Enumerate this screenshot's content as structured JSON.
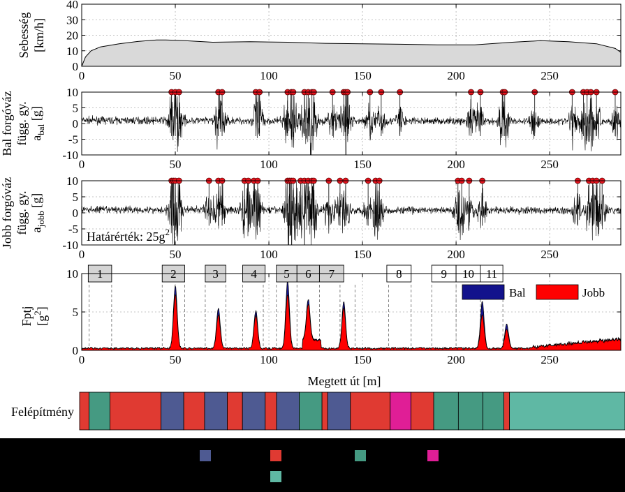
{
  "colors": {
    "speed_fill": "#d9d9d9",
    "signal": "#000000",
    "marker": "#e8141e",
    "bal": "#12128c",
    "jobb": "#ff0000",
    "section_box": "#d4d4d4",
    "structure": {
      "blue": "#4e5a92",
      "red": "#e03a32",
      "teal": "#459a82",
      "magenta": "#e01e96",
      "lightteal": "#5fb8a4"
    }
  },
  "chart_data": [
    {
      "type": "area",
      "ylabel": [
        "Sebesség",
        "[km/h]"
      ],
      "xlim": [
        0,
        288
      ],
      "ylim": [
        0,
        40
      ],
      "xticks": [
        0,
        50,
        100,
        150,
        200,
        250
      ],
      "yticks": [
        0,
        10,
        20,
        30,
        40
      ],
      "grid": true,
      "x": [
        0,
        2,
        5,
        10,
        20,
        30,
        40,
        45,
        55,
        70,
        90,
        110,
        130,
        150,
        170,
        190,
        210,
        230,
        245,
        260,
        275,
        285,
        288
      ],
      "y": [
        0,
        6,
        10,
        12.5,
        14.5,
        16,
        17,
        17,
        16.5,
        15.5,
        15.8,
        15.5,
        14.8,
        14.5,
        14.2,
        13.8,
        13.8,
        15.5,
        16.5,
        15.8,
        14.5,
        11.5,
        9
      ]
    },
    {
      "type": "line",
      "ylabel": [
        "Bal forgóváz",
        "függ. gy.",
        "a",
        "bal",
        " [g]"
      ],
      "xlim": [
        0,
        288
      ],
      "ylim": [
        -10,
        10
      ],
      "xticks": [
        0,
        50,
        100,
        150,
        200,
        250
      ],
      "yticks": [
        -10,
        -5,
        0,
        5,
        10
      ],
      "grid": true,
      "threshold_markers_x": [
        48,
        50,
        52,
        73,
        75,
        93,
        95,
        110,
        112,
        113,
        119,
        121,
        123,
        124,
        134,
        140,
        141,
        142,
        154,
        160,
        170,
        208,
        213,
        225,
        226,
        242,
        262,
        268,
        270,
        272,
        275,
        285
      ]
    },
    {
      "type": "line",
      "ylabel": [
        "Jobb forgóváz",
        "függ. gy.",
        "a",
        "jobb",
        " [g]"
      ],
      "xlim": [
        0,
        288
      ],
      "ylim": [
        -10,
        10
      ],
      "xticks": [
        0,
        50,
        100,
        150,
        200,
        250
      ],
      "yticks": [
        -10,
        -5,
        0,
        5,
        10
      ],
      "grid": true,
      "threshold_markers_x": [
        48,
        49,
        50,
        52,
        68,
        73,
        75,
        87,
        89,
        92,
        94,
        110,
        111,
        112,
        113,
        117,
        119,
        121,
        123,
        124,
        132,
        138,
        141,
        153,
        157,
        159,
        201,
        203,
        207,
        214,
        265,
        271,
        273,
        275,
        278
      ],
      "annotation_prefix": "Határérték: 25g",
      "annotation_sup": "2"
    },
    {
      "type": "area",
      "xlabel": "Megtett út [m]",
      "ylabel": [
        "Fptj",
        "[g",
        "2",
        "]"
      ],
      "xlim": [
        0,
        288
      ],
      "ylim": [
        0,
        10
      ],
      "xticks": [
        0,
        50,
        100,
        150,
        200,
        250
      ],
      "yticks": [
        0,
        5,
        10
      ],
      "grid": true,
      "legend": {
        "placement": "top-right",
        "entries": [
          "Bal",
          "Jobb"
        ]
      },
      "section_labels": [
        "1",
        "2",
        "3",
        "4",
        "5",
        "6",
        "7",
        "8",
        "9",
        "10",
        "11"
      ],
      "section_lines_x": [
        4,
        16,
        43,
        55,
        66,
        77,
        86,
        97,
        104,
        115,
        127,
        138,
        146,
        164,
        176,
        187,
        200,
        213,
        225
      ],
      "series": [
        {
          "name": "Bal",
          "peaks": [
            [
              50,
              8.2
            ],
            [
              73,
              5.2
            ],
            [
              93,
              4.9
            ],
            [
              110,
              8.8
            ],
            [
              121,
              5.3
            ],
            [
              140,
              6.0
            ],
            [
              214,
              6.2
            ],
            [
              227,
              3.2
            ]
          ]
        },
        {
          "name": "Jobb",
          "peaks": [
            [
              50,
              7.6
            ],
            [
              73,
              4.7
            ],
            [
              93,
              4.6
            ],
            [
              110,
              7.6
            ],
            [
              121,
              5.1
            ],
            [
              140,
              5.6
            ],
            [
              214,
              4.8
            ],
            [
              227,
              2.7
            ]
          ]
        }
      ]
    }
  ],
  "structure_strip": {
    "label": "Felépítmény",
    "segments": [
      {
        "from": 0,
        "to": 5,
        "color": "red"
      },
      {
        "from": 5,
        "to": 16,
        "color": "teal"
      },
      {
        "from": 16,
        "to": 43,
        "color": "red"
      },
      {
        "from": 43,
        "to": 55,
        "color": "blue"
      },
      {
        "from": 55,
        "to": 66,
        "color": "red"
      },
      {
        "from": 66,
        "to": 78,
        "color": "blue"
      },
      {
        "from": 78,
        "to": 86,
        "color": "red"
      },
      {
        "from": 86,
        "to": 98,
        "color": "blue"
      },
      {
        "from": 98,
        "to": 104,
        "color": "red"
      },
      {
        "from": 104,
        "to": 116,
        "color": "blue"
      },
      {
        "from": 116,
        "to": 128,
        "color": "teal"
      },
      {
        "from": 128,
        "to": 131,
        "color": "red"
      },
      {
        "from": 131,
        "to": 143,
        "color": "blue"
      },
      {
        "from": 143,
        "to": 164,
        "color": "red"
      },
      {
        "from": 164,
        "to": 175,
        "color": "magenta"
      },
      {
        "from": 175,
        "to": 187,
        "color": "red"
      },
      {
        "from": 187,
        "to": 200,
        "color": "teal"
      },
      {
        "from": 200,
        "to": 213,
        "color": "teal"
      },
      {
        "from": 213,
        "to": 224,
        "color": "teal"
      },
      {
        "from": 224,
        "to": 227,
        "color": "red"
      },
      {
        "from": 227,
        "to": 288,
        "color": "lightteal"
      }
    ]
  },
  "bottom_legend_swatches": [
    "blue",
    "red",
    "teal",
    "magenta",
    "lightteal"
  ]
}
